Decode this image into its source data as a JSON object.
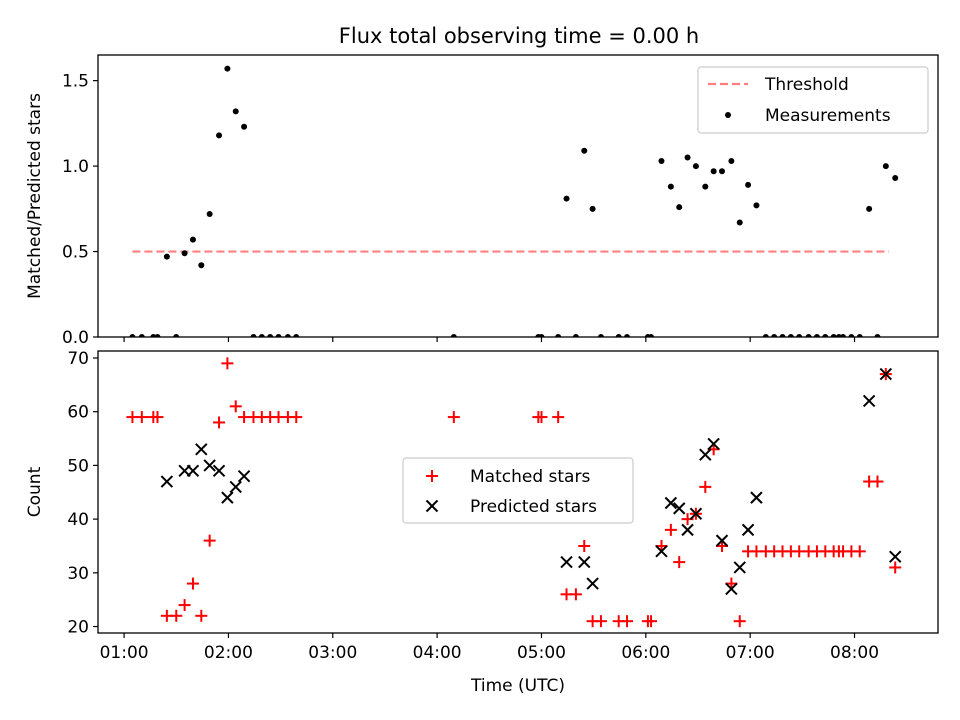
{
  "figure": {
    "title": "Flux total observing time = 0.00 h"
  },
  "chart_data": [
    {
      "type": "scatter",
      "title": "Flux total observing time = 0.00 h",
      "xlabel": "",
      "ylabel": "Matched/Predicted stars",
      "x_unit": "hours UTC",
      "xlim": [
        0.75,
        8.8
      ],
      "ylim": [
        0,
        1.65
      ],
      "yticks": [
        0.0,
        0.5,
        1.0,
        1.5
      ],
      "ytick_labels": [
        "0.0",
        "0.5",
        "1.0",
        "1.5"
      ],
      "legend_position": "upper right",
      "threshold": {
        "name": "Threshold",
        "color": "#ff7f7f",
        "style": "dashed",
        "y": 0.5,
        "x_start": 1.08,
        "x_end": 8.33
      },
      "series": [
        {
          "name": "Measurements",
          "color": "#000000",
          "marker": "dot",
          "points": [
            [
              1.08,
              0
            ],
            [
              1.17,
              0
            ],
            [
              1.28,
              0
            ],
            [
              1.32,
              0
            ],
            [
              1.41,
              0.47
            ],
            [
              1.5,
              0
            ],
            [
              1.58,
              0.49
            ],
            [
              1.66,
              0.57
            ],
            [
              1.74,
              0.42
            ],
            [
              1.82,
              0.72
            ],
            [
              1.91,
              1.18
            ],
            [
              1.99,
              1.57
            ],
            [
              2.07,
              1.32
            ],
            [
              2.15,
              1.23
            ],
            [
              2.24,
              0
            ],
            [
              2.32,
              0
            ],
            [
              2.4,
              0
            ],
            [
              2.48,
              0
            ],
            [
              2.57,
              0
            ],
            [
              2.65,
              0
            ],
            [
              4.16,
              0
            ],
            [
              4.97,
              0
            ],
            [
              5.0,
              0
            ],
            [
              5.16,
              0
            ],
            [
              5.24,
              0.81
            ],
            [
              5.33,
              0
            ],
            [
              5.41,
              1.09
            ],
            [
              5.49,
              0.75
            ],
            [
              5.57,
              0
            ],
            [
              5.74,
              0
            ],
            [
              5.82,
              0
            ],
            [
              6.02,
              0
            ],
            [
              6.05,
              0
            ],
            [
              6.15,
              1.03
            ],
            [
              6.24,
              0.88
            ],
            [
              6.32,
              0.76
            ],
            [
              6.4,
              1.05
            ],
            [
              6.48,
              1.0
            ],
            [
              6.57,
              0.88
            ],
            [
              6.65,
              0.97
            ],
            [
              6.73,
              0.97
            ],
            [
              6.82,
              1.03
            ],
            [
              6.9,
              0.67
            ],
            [
              6.98,
              0.89
            ],
            [
              7.06,
              0.77
            ],
            [
              7.15,
              0
            ],
            [
              7.23,
              0
            ],
            [
              7.31,
              0
            ],
            [
              7.39,
              0
            ],
            [
              7.47,
              0
            ],
            [
              7.56,
              0
            ],
            [
              7.64,
              0
            ],
            [
              7.72,
              0
            ],
            [
              7.8,
              0
            ],
            [
              7.85,
              0
            ],
            [
              7.89,
              0
            ],
            [
              7.97,
              0
            ],
            [
              8.05,
              0
            ],
            [
              8.14,
              0.75
            ],
            [
              8.22,
              0
            ],
            [
              8.3,
              1.0
            ],
            [
              8.39,
              0.93
            ]
          ]
        }
      ]
    },
    {
      "type": "scatter",
      "title": "",
      "xlabel": "Time (UTC)",
      "ylabel": "Count",
      "x_unit": "hours UTC",
      "xlim": [
        0.75,
        8.8
      ],
      "ylim": [
        18.8,
        71.3
      ],
      "xticks": [
        1,
        2,
        3,
        4,
        5,
        6,
        7,
        8
      ],
      "xtick_labels": [
        "01:00",
        "02:00",
        "03:00",
        "04:00",
        "05:00",
        "06:00",
        "07:00",
        "08:00"
      ],
      "yticks": [
        20,
        30,
        40,
        50,
        60,
        70
      ],
      "ytick_labels": [
        "20",
        "30",
        "40",
        "50",
        "60",
        "70"
      ],
      "legend_position": "center",
      "series": [
        {
          "name": "Matched stars",
          "color": "#ff0000",
          "marker": "plus",
          "points": [
            [
              1.08,
              59
            ],
            [
              1.17,
              59
            ],
            [
              1.28,
              59
            ],
            [
              1.32,
              59
            ],
            [
              1.41,
              22
            ],
            [
              1.5,
              22
            ],
            [
              1.58,
              24
            ],
            [
              1.66,
              28
            ],
            [
              1.74,
              22
            ],
            [
              1.82,
              36
            ],
            [
              1.91,
              58
            ],
            [
              1.99,
              69
            ],
            [
              2.07,
              61
            ],
            [
              2.15,
              59
            ],
            [
              2.24,
              59
            ],
            [
              2.32,
              59
            ],
            [
              2.4,
              59
            ],
            [
              2.48,
              59
            ],
            [
              2.57,
              59
            ],
            [
              2.65,
              59
            ],
            [
              4.16,
              59
            ],
            [
              4.97,
              59
            ],
            [
              5.0,
              59
            ],
            [
              5.16,
              59
            ],
            [
              5.24,
              26
            ],
            [
              5.33,
              26
            ],
            [
              5.41,
              35
            ],
            [
              5.49,
              21
            ],
            [
              5.57,
              21
            ],
            [
              5.74,
              21
            ],
            [
              5.82,
              21
            ],
            [
              6.02,
              21
            ],
            [
              6.05,
              21
            ],
            [
              6.15,
              35
            ],
            [
              6.24,
              38
            ],
            [
              6.32,
              32
            ],
            [
              6.4,
              40
            ],
            [
              6.48,
              41
            ],
            [
              6.57,
              46
            ],
            [
              6.65,
              53
            ],
            [
              6.73,
              35
            ],
            [
              6.82,
              28
            ],
            [
              6.9,
              21
            ],
            [
              6.98,
              34
            ],
            [
              7.06,
              34
            ],
            [
              7.15,
              34
            ],
            [
              7.23,
              34
            ],
            [
              7.31,
              34
            ],
            [
              7.39,
              34
            ],
            [
              7.47,
              34
            ],
            [
              7.56,
              34
            ],
            [
              7.64,
              34
            ],
            [
              7.72,
              34
            ],
            [
              7.8,
              34
            ],
            [
              7.85,
              34
            ],
            [
              7.89,
              34
            ],
            [
              7.97,
              34
            ],
            [
              8.05,
              34
            ],
            [
              8.14,
              47
            ],
            [
              8.22,
              47
            ],
            [
              8.3,
              67
            ],
            [
              8.39,
              31
            ]
          ]
        },
        {
          "name": "Predicted stars",
          "color": "#000000",
          "marker": "x",
          "points": [
            [
              1.41,
              47
            ],
            [
              1.58,
              49
            ],
            [
              1.66,
              49
            ],
            [
              1.74,
              53
            ],
            [
              1.82,
              50
            ],
            [
              1.91,
              49
            ],
            [
              1.99,
              44
            ],
            [
              2.07,
              46
            ],
            [
              2.15,
              48
            ],
            [
              5.24,
              32
            ],
            [
              5.41,
              32
            ],
            [
              5.49,
              28
            ],
            [
              6.15,
              34
            ],
            [
              6.24,
              43
            ],
            [
              6.32,
              42
            ],
            [
              6.4,
              38
            ],
            [
              6.48,
              41
            ],
            [
              6.57,
              52
            ],
            [
              6.65,
              54
            ],
            [
              6.73,
              36
            ],
            [
              6.82,
              27
            ],
            [
              6.9,
              31
            ],
            [
              6.98,
              38
            ],
            [
              7.06,
              44
            ],
            [
              8.14,
              62
            ],
            [
              8.3,
              67
            ],
            [
              8.39,
              33
            ]
          ]
        }
      ]
    }
  ]
}
